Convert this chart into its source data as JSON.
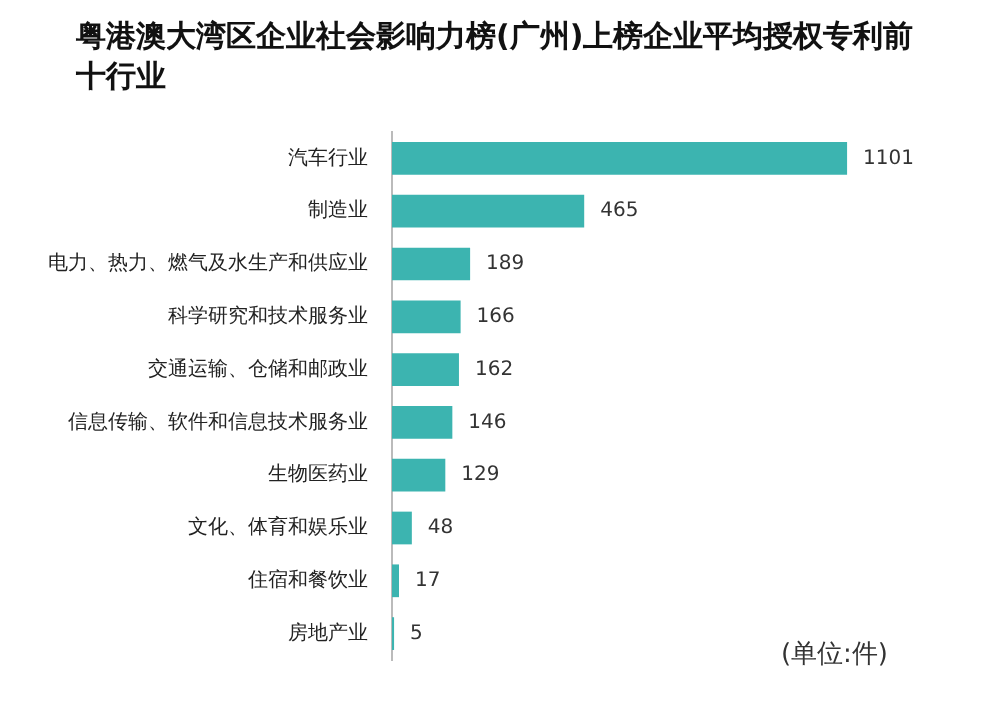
{
  "chart_data": {
    "type": "bar",
    "orientation": "horizontal",
    "title": "粤港澳大湾区企业社会影响力榜(广州)上榜企业平均授权专利前十行业",
    "categories": [
      "汽车行业",
      "制造业",
      "电力、热力、燃气及水生产和供应业",
      "科学研究和技术服务业",
      "交通运输、仓储和邮政业",
      "信息传输、软件和信息技术服务业",
      "生物医药业",
      "文化、体育和娱乐业",
      "住宿和餐饮业",
      "房地产业"
    ],
    "values": [
      1101,
      465,
      189,
      166,
      162,
      146,
      129,
      48,
      17,
      5
    ],
    "color": "#3cb4b0",
    "data_labels": true,
    "annotations": [
      "(单位:件)"
    ]
  }
}
